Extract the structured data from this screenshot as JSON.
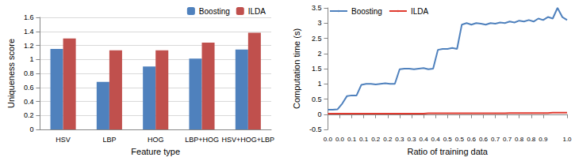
{
  "chart_data": [
    {
      "type": "bar",
      "categories": [
        "HSV",
        "LBP",
        "HOG",
        "LBP+HOG",
        "HSV+HOG+LBP"
      ],
      "series": [
        {
          "name": "Boosting",
          "color": "#4f81bd",
          "values": [
            1.15,
            0.68,
            0.9,
            1.01,
            1.14
          ]
        },
        {
          "name": "ILDA",
          "color": "#c0504d",
          "values": [
            1.3,
            1.13,
            1.13,
            1.24,
            1.38
          ]
        }
      ],
      "x_label": "Feature type",
      "y_label": "Uniqueness score",
      "ylim": [
        0,
        1.6
      ],
      "yticks": [
        0,
        0.2,
        0.4,
        0.6,
        0.8,
        1,
        1.2,
        1.4,
        1.6
      ],
      "grid": true,
      "legend": "top-right"
    },
    {
      "type": "line",
      "x": [
        0,
        0.02,
        0.04,
        0.06,
        0.08,
        0.1,
        0.12,
        0.14,
        0.16,
        0.18,
        0.2,
        0.22,
        0.24,
        0.26,
        0.28,
        0.3,
        0.32,
        0.34,
        0.36,
        0.38,
        0.4,
        0.42,
        0.44,
        0.46,
        0.48,
        0.5,
        0.52,
        0.54,
        0.56,
        0.58,
        0.6,
        0.62,
        0.64,
        0.66,
        0.68,
        0.7,
        0.72,
        0.74,
        0.76,
        0.78,
        0.8,
        0.82,
        0.84,
        0.86,
        0.88,
        0.9,
        0.92,
        0.94,
        0.96,
        0.98,
        1.0
      ],
      "series": [
        {
          "name": "Boosting",
          "color": "#4f81bd",
          "values": [
            0.15,
            0.15,
            0.16,
            0.35,
            0.6,
            0.62,
            0.62,
            0.97,
            1.0,
            1.0,
            0.98,
            1.0,
            1.02,
            1.0,
            1.0,
            1.48,
            1.5,
            1.5,
            1.48,
            1.5,
            1.52,
            1.48,
            1.5,
            2.12,
            2.15,
            2.15,
            2.18,
            2.15,
            2.95,
            3.0,
            2.95,
            3.0,
            2.98,
            2.95,
            3.0,
            2.98,
            3.02,
            3.0,
            3.05,
            3.02,
            3.08,
            3.05,
            3.1,
            3.05,
            3.15,
            3.1,
            3.2,
            3.15,
            3.5,
            3.2,
            3.1
          ]
        },
        {
          "name": "ILDA",
          "color": "#e03a2f",
          "values": [
            0.02,
            0.02,
            0.02,
            0.02,
            0.02,
            0.02,
            0.02,
            0.02,
            0.02,
            0.02,
            0.02,
            0.02,
            0.02,
            0.02,
            0.02,
            0.02,
            0.02,
            0.02,
            0.02,
            0.02,
            0.02,
            0.03,
            0.03,
            0.03,
            0.03,
            0.03,
            0.03,
            0.03,
            0.03,
            0.03,
            0.03,
            0.03,
            0.03,
            0.03,
            0.03,
            0.03,
            0.03,
            0.03,
            0.04,
            0.04,
            0.04,
            0.04,
            0.04,
            0.04,
            0.04,
            0.04,
            0.04,
            0.05,
            0.05,
            0.05,
            0.05
          ]
        }
      ],
      "x_label": "Ratio of training data",
      "y_label": "Computation time (s)",
      "xlim": [
        0,
        1
      ],
      "xticks": [
        {
          "value": 0,
          "label": "0.0"
        },
        {
          "value": 0.05,
          "label": "0.0"
        },
        {
          "value": 0.1,
          "label": "0.1"
        },
        {
          "value": 0.15,
          "label": "0.1"
        },
        {
          "value": 0.2,
          "label": "0.2"
        },
        {
          "value": 0.25,
          "label": "0.2"
        },
        {
          "value": 0.3,
          "label": "0.3"
        },
        {
          "value": 0.35,
          "label": "0.3"
        },
        {
          "value": 0.4,
          "label": "0.4"
        },
        {
          "value": 0.45,
          "label": "0.4"
        },
        {
          "value": 0.5,
          "label": "0.5"
        },
        {
          "value": 0.55,
          "label": "0.5"
        },
        {
          "value": 0.6,
          "label": "0.6"
        },
        {
          "value": 0.65,
          "label": "0.6"
        },
        {
          "value": 0.7,
          "label": "0.7"
        },
        {
          "value": 0.75,
          "label": "0.7"
        },
        {
          "value": 0.8,
          "label": "0.8"
        },
        {
          "value": 0.85,
          "label": "0.8"
        },
        {
          "value": 0.9,
          "label": "0.9"
        },
        {
          "value": 1.0,
          "label": "1.0"
        }
      ],
      "ylim": [
        -0.5,
        3.5
      ],
      "yticks": [
        -0.5,
        0,
        0.5,
        1,
        1.5,
        2,
        2.5,
        3,
        3.5
      ],
      "grid": false,
      "legend": "top-left"
    }
  ]
}
